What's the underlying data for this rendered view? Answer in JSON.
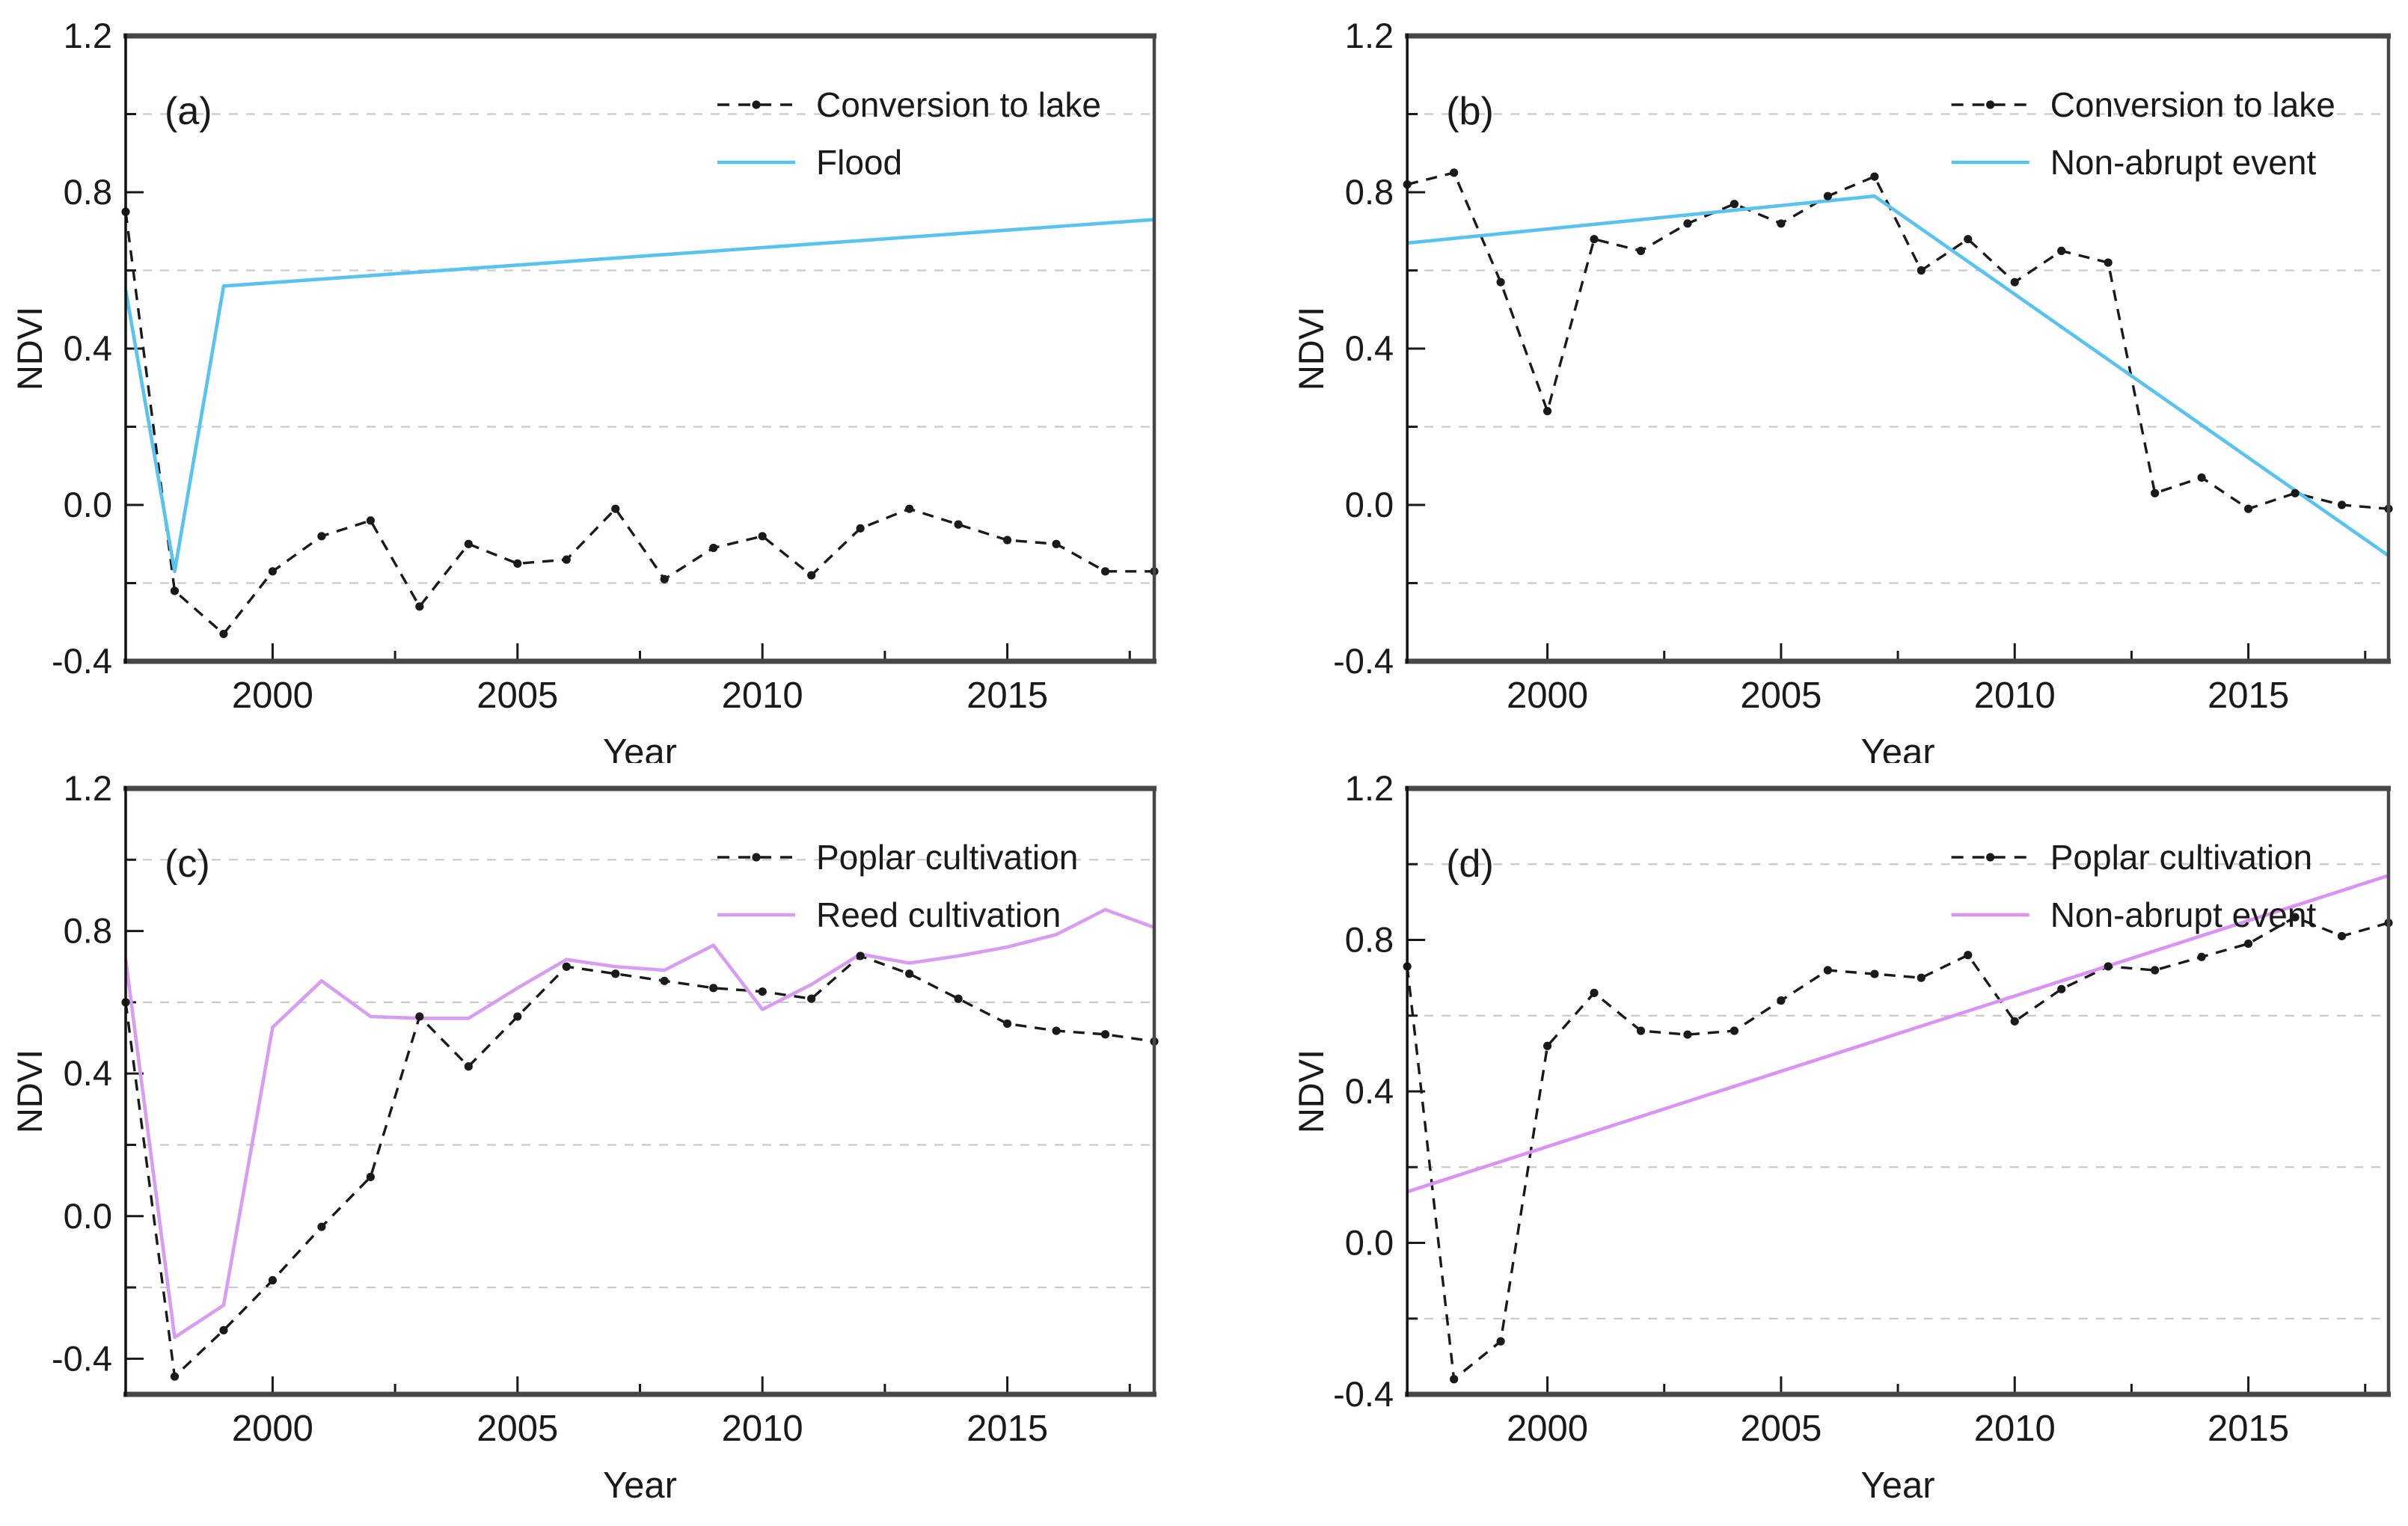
{
  "figure": {
    "background": "#ffffff",
    "axis_color": "#474747",
    "grid_color": "#c9c9c9",
    "text_color": "#1a1a1a",
    "accent_blue": "#58c3ee",
    "accent_violet_c": "#d79df0",
    "accent_violet_d": "#da93f2"
  },
  "chart_data": [
    {
      "id": "a",
      "panel_label": "(a)",
      "type": "line",
      "xlabel": "Year",
      "ylabel": "NDVI",
      "xlim": [
        1997,
        2018
      ],
      "ylim": [
        -0.4,
        1.2
      ],
      "x_major_ticks": [
        2000,
        2005,
        2010,
        2015
      ],
      "x_minor_ticks": [
        2002.5,
        2007.5,
        2012.5,
        2017.5
      ],
      "y_major_ticks": [
        1.2,
        0.8,
        0.4,
        0.0,
        -0.4
      ],
      "y_minor_ticks": [
        1.0,
        0.6,
        0.2,
        -0.2
      ],
      "gridlines_y": [
        1.0,
        0.6,
        0.2,
        -0.2
      ],
      "legend_position": "top-right",
      "series": [
        {
          "name": "Conversion to lake",
          "style": "dashed-marker",
          "color": "#1a1a1a",
          "x": [
            1997,
            1998,
            1999,
            2000,
            2001,
            2002,
            2003,
            2004,
            2005,
            2006,
            2007,
            2008,
            2009,
            2010,
            2011,
            2012,
            2013,
            2014,
            2015,
            2016,
            2017,
            2018
          ],
          "y": [
            0.75,
            -0.22,
            -0.33,
            -0.17,
            -0.08,
            -0.04,
            -0.26,
            -0.1,
            -0.15,
            -0.14,
            -0.01,
            -0.19,
            -0.11,
            -0.08,
            -0.18,
            -0.06,
            -0.01,
            -0.05,
            -0.09,
            -0.1,
            -0.17,
            -0.17
          ]
        },
        {
          "name": "Flood",
          "style": "solid",
          "color": "#58c3ee",
          "x": [
            1997,
            1998,
            1999,
            2018
          ],
          "y": [
            0.55,
            -0.17,
            0.56,
            0.73
          ]
        }
      ]
    },
    {
      "id": "b",
      "panel_label": "(b)",
      "type": "line",
      "xlabel": "Year",
      "ylabel": "NDVI",
      "xlim": [
        1997,
        2018
      ],
      "ylim": [
        -0.4,
        1.2
      ],
      "x_major_ticks": [
        2000,
        2005,
        2010,
        2015
      ],
      "x_minor_ticks": [
        2002.5,
        2007.5,
        2012.5,
        2017.5
      ],
      "y_major_ticks": [
        1.2,
        0.8,
        0.4,
        0.0,
        -0.4
      ],
      "y_minor_ticks": [
        1.0,
        0.6,
        0.2,
        -0.2
      ],
      "gridlines_y": [
        1.0,
        0.6,
        0.2,
        -0.2
      ],
      "legend_position": "top-right",
      "series": [
        {
          "name": "Conversion to lake",
          "style": "dashed-marker",
          "color": "#1a1a1a",
          "x": [
            1997,
            1998,
            1999,
            2000,
            2001,
            2002,
            2003,
            2004,
            2005,
            2006,
            2007,
            2008,
            2009,
            2010,
            2011,
            2012,
            2013,
            2014,
            2015,
            2016,
            2017,
            2018
          ],
          "y": [
            0.82,
            0.85,
            0.57,
            0.24,
            0.68,
            0.65,
            0.72,
            0.77,
            0.72,
            0.79,
            0.84,
            0.6,
            0.68,
            0.57,
            0.65,
            0.62,
            0.03,
            0.07,
            -0.01,
            0.03,
            0.0,
            -0.01
          ]
        },
        {
          "name": "Non-abrupt event",
          "style": "solid",
          "color": "#58c3ee",
          "x": [
            1997,
            2007,
            2018
          ],
          "y": [
            0.67,
            0.79,
            -0.13
          ]
        }
      ]
    },
    {
      "id": "c",
      "panel_label": "(c)",
      "type": "line",
      "xlabel": "Year",
      "ylabel": "NDVI",
      "xlim": [
        1997,
        2018
      ],
      "ylim": [
        -0.5,
        1.2
      ],
      "x_major_ticks": [
        2000,
        2005,
        2010,
        2015
      ],
      "x_minor_ticks": [
        2002.5,
        2007.5,
        2012.5,
        2017.5
      ],
      "y_major_ticks": [
        1.2,
        0.8,
        0.4,
        0.0,
        -0.4
      ],
      "y_minor_ticks": [
        1.0,
        0.6,
        0.2,
        -0.2
      ],
      "gridlines_y": [
        1.0,
        0.6,
        0.2,
        -0.2
      ],
      "legend_position": "top-right",
      "series": [
        {
          "name": "Poplar cultivation",
          "style": "dashed-marker",
          "color": "#1a1a1a",
          "x": [
            1997,
            1998,
            1999,
            2000,
            2001,
            2002,
            2003,
            2004,
            2005,
            2006,
            2007,
            2008,
            2009,
            2010,
            2011,
            2012,
            2013,
            2014,
            2015,
            2016,
            2017,
            2018
          ],
          "y": [
            0.6,
            -0.45,
            -0.32,
            -0.18,
            -0.03,
            0.11,
            0.56,
            0.42,
            0.56,
            0.7,
            0.68,
            0.66,
            0.64,
            0.63,
            0.61,
            0.73,
            0.68,
            0.61,
            0.54,
            0.52,
            0.51,
            0.49
          ]
        },
        {
          "name": "Reed cultivation",
          "style": "solid",
          "color": "#d79df0",
          "x": [
            1997,
            1998,
            1999,
            2000,
            2001,
            2002,
            2003,
            2004,
            2005,
            2006,
            2007,
            2008,
            2009,
            2010,
            2011,
            2012,
            2013,
            2014,
            2015,
            2016,
            2017,
            2018
          ],
          "y": [
            0.72,
            -0.34,
            -0.25,
            0.53,
            0.66,
            0.56,
            0.555,
            0.555,
            0.64,
            0.72,
            0.7,
            0.69,
            0.76,
            0.58,
            0.65,
            0.735,
            0.71,
            0.73,
            0.755,
            0.79,
            0.86,
            0.81
          ]
        }
      ]
    },
    {
      "id": "d",
      "panel_label": "(d)",
      "type": "line",
      "xlabel": "Year",
      "ylabel": "NDVI",
      "xlim": [
        1997,
        2018
      ],
      "ylim": [
        -0.4,
        1.2
      ],
      "x_major_ticks": [
        2000,
        2005,
        2010,
        2015
      ],
      "x_minor_ticks": [
        2002.5,
        2007.5,
        2012.5,
        2017.5
      ],
      "y_major_ticks": [
        1.2,
        0.8,
        0.4,
        0.0,
        -0.4
      ],
      "y_minor_ticks": [
        1.0,
        0.6,
        0.2,
        -0.2
      ],
      "gridlines_y": [
        1.0,
        0.6,
        0.2,
        -0.2
      ],
      "legend_position": "top-right",
      "series": [
        {
          "name": "Poplar cultivation",
          "style": "dashed-marker",
          "color": "#1a1a1a",
          "x": [
            1997,
            1998,
            1999,
            2000,
            2001,
            2002,
            2003,
            2004,
            2005,
            2006,
            2007,
            2008,
            2009,
            2010,
            2011,
            2012,
            2013,
            2014,
            2015,
            2016,
            2017,
            2018
          ],
          "y": [
            0.73,
            -0.36,
            -0.26,
            0.52,
            0.66,
            0.56,
            0.55,
            0.56,
            0.64,
            0.72,
            0.71,
            0.7,
            0.76,
            0.585,
            0.67,
            0.73,
            0.72,
            0.755,
            0.79,
            0.86,
            0.81,
            0.845
          ]
        },
        {
          "name": "Non-abrupt event",
          "style": "solid",
          "color": "#da93f2",
          "x": [
            1997,
            2018
          ],
          "y": [
            0.135,
            0.97
          ]
        }
      ]
    }
  ]
}
